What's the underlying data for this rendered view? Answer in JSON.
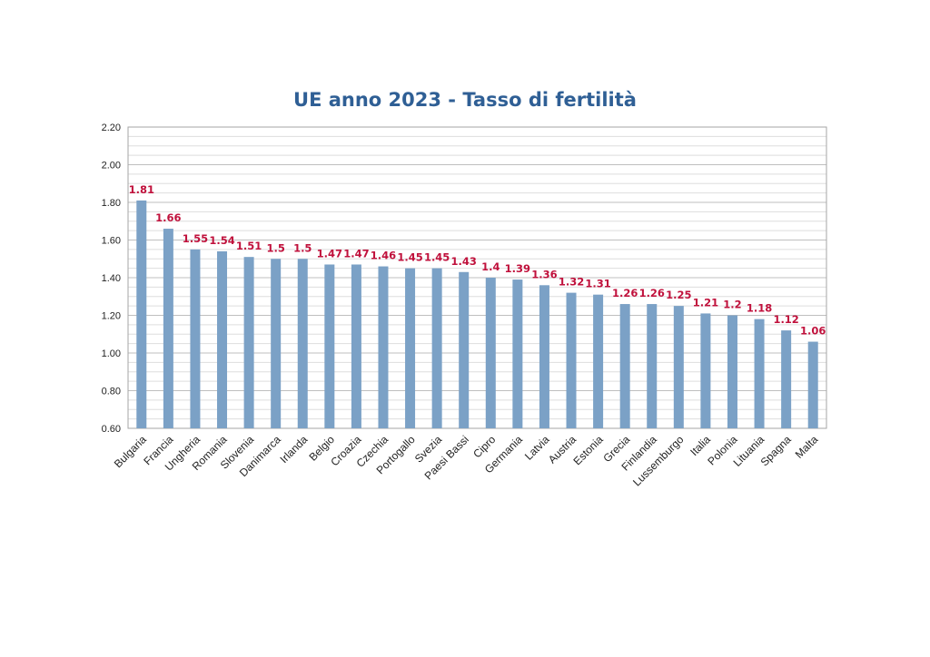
{
  "chart_data": {
    "type": "bar",
    "title": "UE anno 2023 - Tasso di fertilità",
    "xlabel": "",
    "ylabel": "",
    "ylim": [
      0.6,
      2.2
    ],
    "y_ticks": [
      "0.60",
      "0.80",
      "1.00",
      "1.20",
      "1.40",
      "1.60",
      "1.80",
      "2.00",
      "2.20"
    ],
    "grid": true,
    "legend": "none",
    "bar_color": "#7ba1c6",
    "label_color": "#c0113c",
    "categories": [
      "Bulgaria",
      "Francia",
      "Ungheria",
      "Romania",
      "Slovenia",
      "Danimarca",
      "Irlanda",
      "Belgio",
      "Croazia",
      "Czechia",
      "Portogallo",
      "Svezia",
      "Paesi Bassi",
      "Cipro",
      "Germania",
      "Latvia",
      "Austria",
      "Estonia",
      "Grecia",
      "Finlandia",
      "Lussemburgo",
      "Italia",
      "Polonia",
      "Lituania",
      "Spagna",
      "Malta"
    ],
    "values": [
      1.81,
      1.66,
      1.55,
      1.54,
      1.51,
      1.5,
      1.5,
      1.47,
      1.47,
      1.46,
      1.45,
      1.45,
      1.43,
      1.4,
      1.39,
      1.36,
      1.32,
      1.31,
      1.26,
      1.26,
      1.25,
      1.21,
      1.2,
      1.18,
      1.12,
      1.06
    ],
    "data_labels": [
      "1.81",
      "1.66",
      "1.55",
      "1.54",
      "1.51",
      "1.5",
      "1.5",
      "1.47",
      "1.47",
      "1.46",
      "1.45",
      "1.45",
      "1.43",
      "1.4",
      "1.39",
      "1.36",
      "1.32",
      "1.31",
      "1.26",
      "1.26",
      "1.25",
      "1.21",
      "1.2",
      "1.18",
      "1.12",
      "1.06"
    ]
  }
}
